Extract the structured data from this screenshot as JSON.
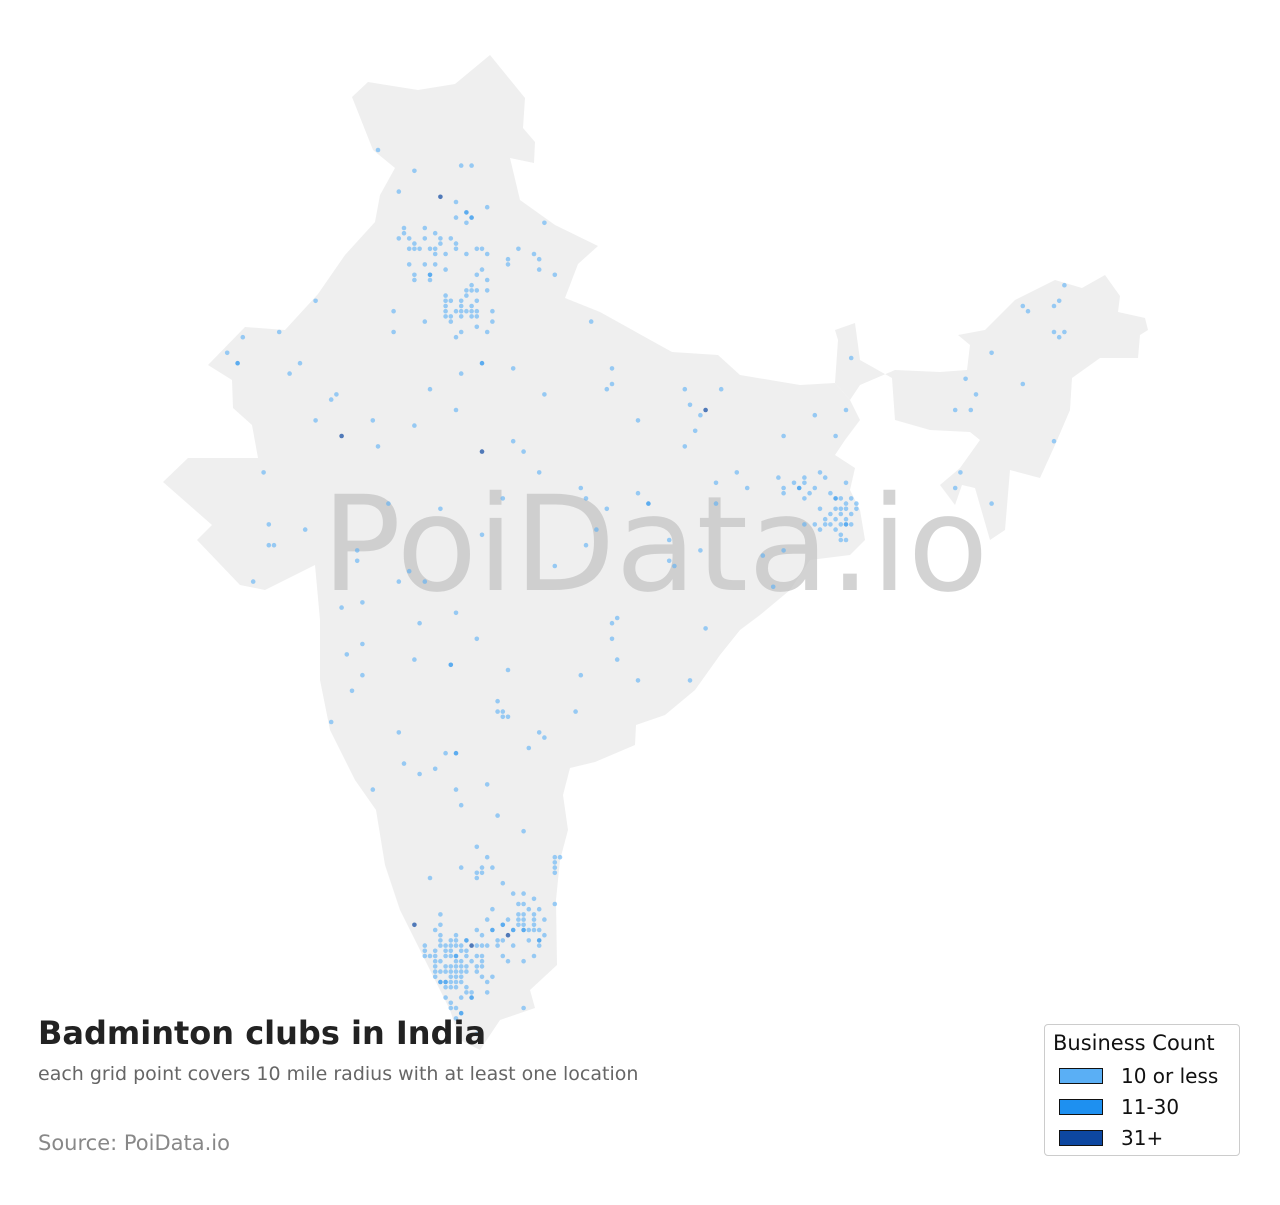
{
  "title": "Badminton clubs in India",
  "subtitle": "each grid point covers 10 mile radius with at least one location",
  "source": "Source: PoiData.io",
  "watermark": "PoiData.io",
  "colors": {
    "land": "#efefef",
    "low": "#5aaff5",
    "mid": "#1e90f0",
    "high": "#0d47a1",
    "watermark": "#c4c4c4"
  },
  "legend": {
    "title": "Business Count",
    "items": [
      {
        "label": "10 or less",
        "color": "#5aaff5"
      },
      {
        "label": "11-30",
        "color": "#1e90f0"
      },
      {
        "label": "31+",
        "color": "#0d47a1"
      }
    ]
  }
}
